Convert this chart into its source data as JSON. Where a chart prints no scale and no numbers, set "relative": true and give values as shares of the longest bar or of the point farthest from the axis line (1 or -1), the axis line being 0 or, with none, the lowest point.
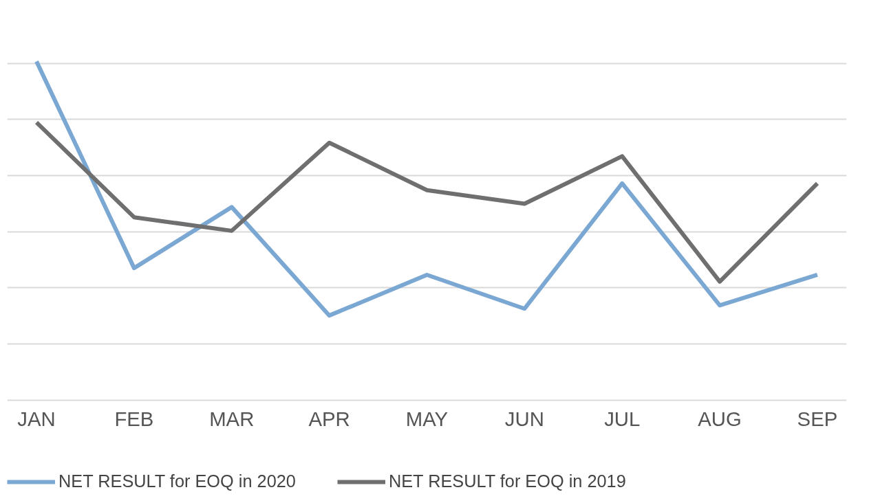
{
  "chart_data": {
    "type": "line",
    "relative": true,
    "categories": [
      "JAN",
      "FEB",
      "MAR",
      "APR",
      "MAY",
      "JUN",
      "JUL",
      "AUG",
      "SEP"
    ],
    "series": [
      {
        "name": "NET RESULT for EOQ in 2020",
        "color": "#7ba7d3",
        "values": [
          1.0,
          0.39,
          0.57,
          0.25,
          0.37,
          0.27,
          0.64,
          0.28,
          0.37
        ]
      },
      {
        "name": "NET RESULT for EOQ in 2019",
        "color": "#6f6f6f",
        "values": [
          0.82,
          0.54,
          0.5,
          0.76,
          0.62,
          0.58,
          0.72,
          0.35,
          0.64
        ]
      }
    ],
    "grid": "y",
    "legend": "bottom",
    "marker": "none",
    "line_style": "solid"
  }
}
